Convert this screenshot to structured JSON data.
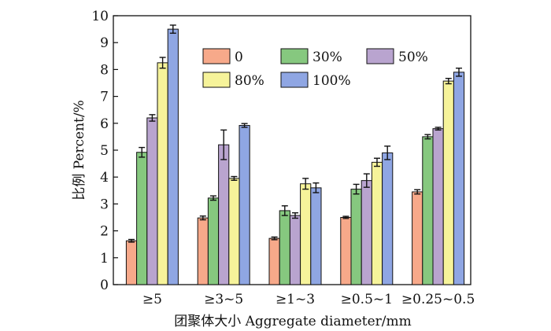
{
  "chart_data": {
    "type": "bar",
    "xlabel": "团聚体大小 Aggregate diameter/mm",
    "ylabel": "比例 Percent/%",
    "ylim": [
      0,
      10
    ],
    "yticks": [
      0,
      1,
      2,
      3,
      4,
      5,
      6,
      7,
      8,
      9,
      10
    ],
    "grid": false,
    "legend_position": "top-right",
    "categories": [
      "≥5",
      "≥3~5",
      "≥1~3",
      "≥0.5~1",
      "≥0.25~0.5"
    ],
    "series": [
      {
        "name": "0",
        "color": "#f7a98a",
        "values": [
          1.63,
          2.48,
          1.72,
          2.5,
          3.45
        ],
        "errors": [
          0.05,
          0.07,
          0.05,
          0.04,
          0.08
        ]
      },
      {
        "name": "30%",
        "color": "#86c87f",
        "values": [
          4.92,
          3.22,
          2.75,
          3.55,
          5.5
        ],
        "errors": [
          0.18,
          0.08,
          0.18,
          0.18,
          0.08
        ]
      },
      {
        "name": "50%",
        "color": "#b9a4cf",
        "values": [
          6.2,
          5.2,
          2.57,
          3.87,
          5.8
        ],
        "errors": [
          0.12,
          0.55,
          0.1,
          0.25,
          0.05
        ]
      },
      {
        "name": "80%",
        "color": "#f6f39a",
        "values": [
          8.25,
          3.95,
          3.75,
          4.55,
          7.57
        ],
        "errors": [
          0.2,
          0.07,
          0.2,
          0.15,
          0.1
        ]
      },
      {
        "name": "100%",
        "color": "#8fa6e3",
        "values": [
          9.5,
          5.92,
          3.6,
          4.9,
          7.9
        ],
        "errors": [
          0.15,
          0.07,
          0.18,
          0.25,
          0.15
        ]
      }
    ]
  }
}
